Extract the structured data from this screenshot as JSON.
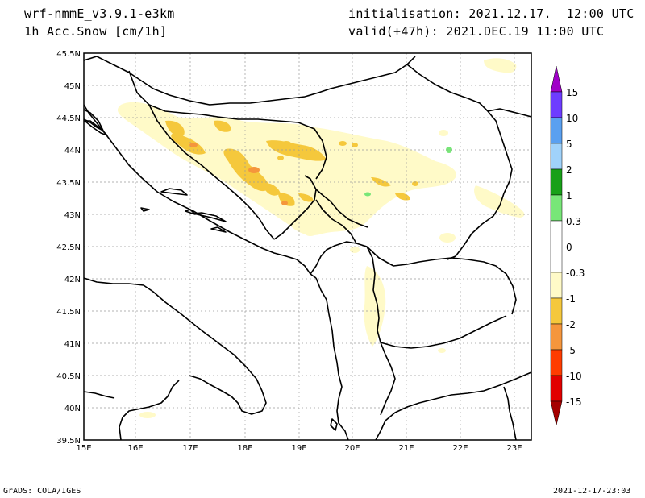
{
  "header": {
    "model": "wrf-nmmE_v3.9.1-e3km",
    "variable": "1h Acc.Snow [cm/1h]",
    "init": "initialisation: 2021.12.17.  12:00 UTC",
    "valid": "valid(+47h): 2021.DEC.19 11:00 UTC"
  },
  "footer": {
    "credit": "GrADS: COLA/IGES",
    "timestamp": "2021-12-17-23:03"
  },
  "axes": {
    "lon_labels": [
      "15E",
      "16E",
      "17E",
      "18E",
      "19E",
      "20E",
      "21E",
      "22E",
      "23E"
    ],
    "lat_labels": [
      "45.5N",
      "45N",
      "44.5N",
      "44N",
      "43.5N",
      "43N",
      "42.5N",
      "42N",
      "41.5N",
      "41N",
      "40.5N",
      "40N",
      "39.5N"
    ],
    "lon_range": [
      15.0,
      23.3
    ],
    "lat_range": [
      39.5,
      45.5
    ]
  },
  "legend": {
    "labels": [
      "15",
      "10",
      "5",
      "2",
      "1",
      "0.3",
      "0",
      "-0.3",
      "-1",
      "-2",
      "-5",
      "-10",
      "-15"
    ],
    "colors": [
      "#a000c8",
      "#6e3cff",
      "#5aa0f0",
      "#a0d2fa",
      "#18a018",
      "#78e678",
      "#ffffff",
      "#fffac8",
      "#f5c83c",
      "#f5963c",
      "#ff3c00",
      "#e10000",
      "#a50000",
      "#780000"
    ]
  }
}
